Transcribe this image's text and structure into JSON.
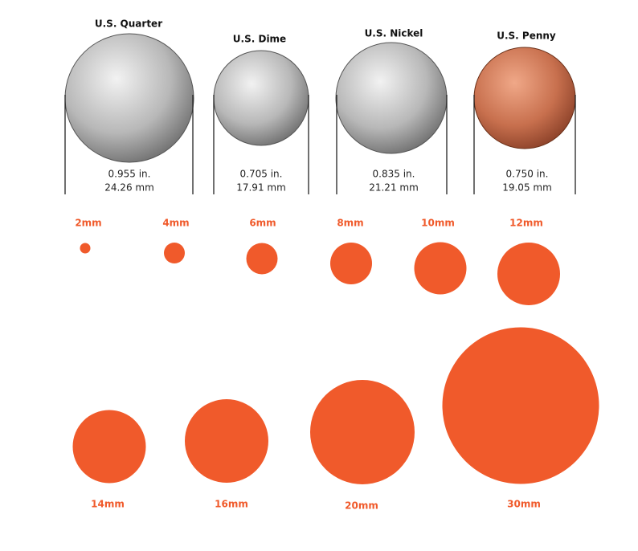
{
  "coins": [
    {
      "name": "U.S. Quarter",
      "inches": "0.955 in.",
      "mm": "24.26 mm"
    },
    {
      "name": "U.S. Dime",
      "inches": "0.705 in.",
      "mm": "17.91 mm"
    },
    {
      "name": "U.S. Nickel",
      "inches": "0.835 in.",
      "mm": "21.21 mm"
    },
    {
      "name": "U.S. Penny",
      "inches": "0.750 in.",
      "mm": "19.05 mm"
    }
  ],
  "circles": [
    {
      "value": 2,
      "label": "2mm"
    },
    {
      "value": 4,
      "label": "4mm"
    },
    {
      "value": 6,
      "label": "6mm"
    },
    {
      "value": 8,
      "label": "8mm"
    },
    {
      "value": 10,
      "label": "10mm"
    },
    {
      "value": 12,
      "label": "12mm"
    },
    {
      "value": 14,
      "label": "14mm"
    },
    {
      "value": 16,
      "label": "16mm"
    },
    {
      "value": 20,
      "label": "20mm"
    },
    {
      "value": 30,
      "label": "30mm"
    }
  ],
  "circle_color": "#f05a2b"
}
